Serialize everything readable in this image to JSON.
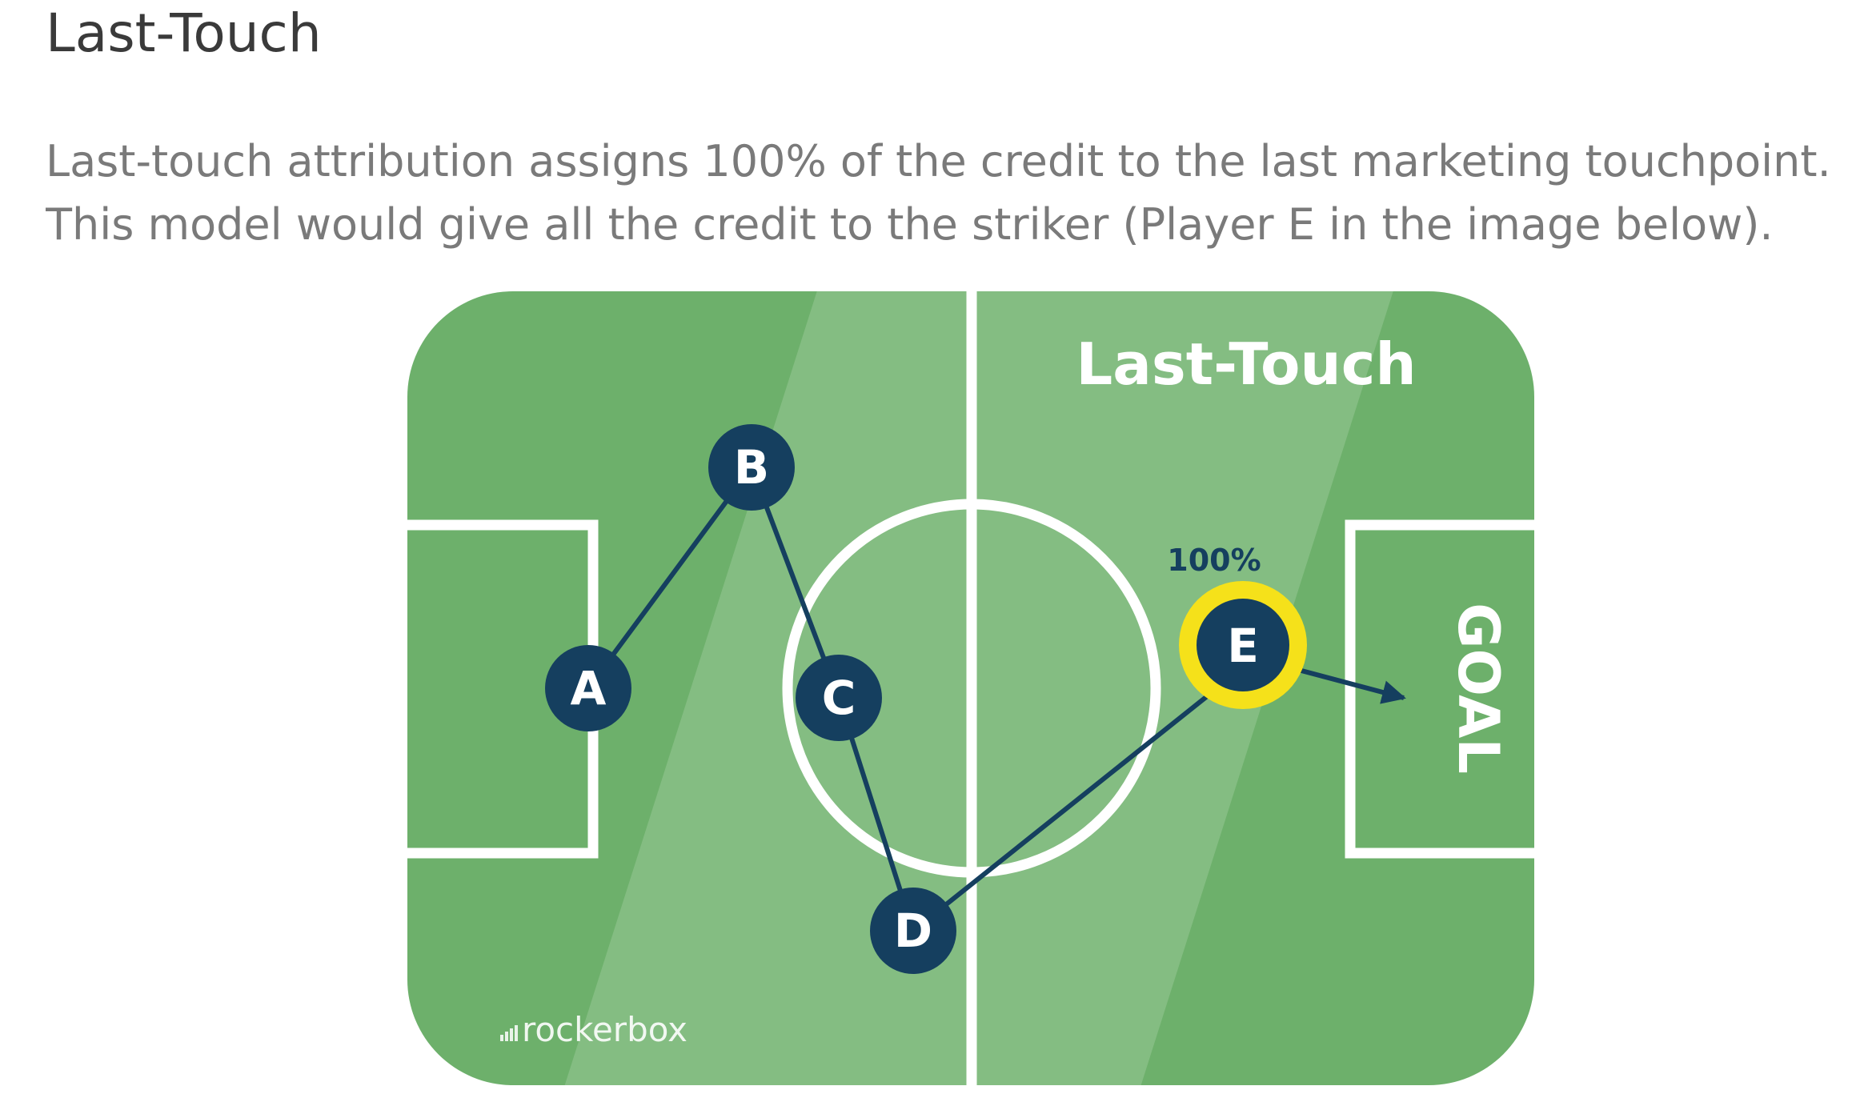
{
  "heading": "Last-Touch",
  "paragraph": {
    "line1": "Last-touch attribution assigns 100% of the credit to the last marketing touchpoint.",
    "line2": "This model would give all the credit to the striker (Player E in the image below)."
  },
  "figure": {
    "title": "Last-Touch",
    "goal_label": "GOAL",
    "credit_label": "100%",
    "logo_text": "rockerbox",
    "players": [
      "A",
      "B",
      "C",
      "D",
      "E"
    ],
    "colors": {
      "pitch_dark": "#6db06b",
      "pitch_light": "#84bd82",
      "lines": "#ffffff",
      "player": "#153f5f",
      "highlight": "#f5e11a"
    }
  }
}
